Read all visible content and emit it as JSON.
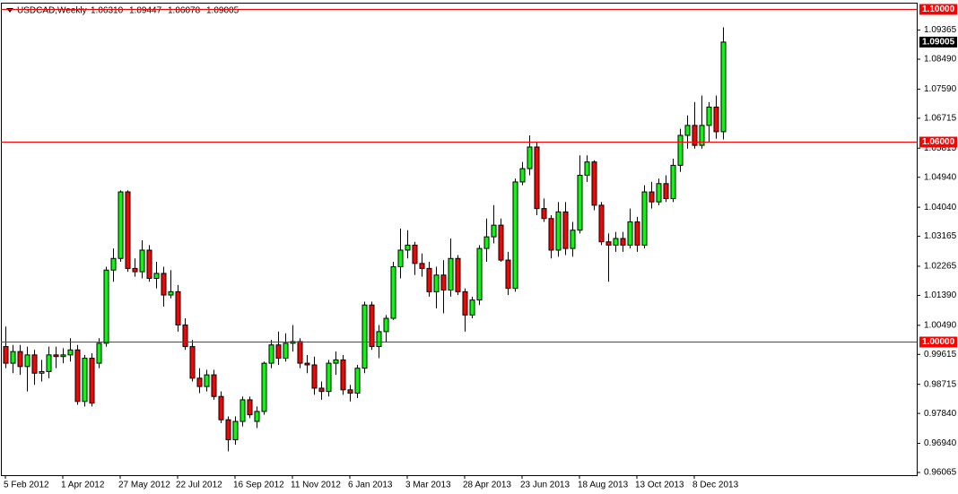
{
  "chart_data": {
    "type": "candlestick",
    "symbol": "USDCAD,Weekly",
    "ohlc_labels": [
      "1.06310",
      "1.09447",
      "1.06078",
      "1.09005"
    ],
    "up_color": "#00ff00",
    "down_color": "#ff0000",
    "ylim": [
      0.95984,
      1.10135
    ],
    "yticks": [
      1.09365,
      {
        "value": 1.0849,
        "label": "1.08490"
      },
      {
        "value": 1.0759,
        "label": "1.07590"
      },
      1.06715,
      1.05815,
      {
        "value": 1.0494,
        "label": "1.04940"
      },
      {
        "value": 1.0404,
        "label": "1.04040"
      },
      1.03165,
      1.02265,
      {
        "value": 1.0139,
        "label": "1.01390"
      },
      {
        "value": 1.0049,
        "label": "1.00490"
      },
      0.99615,
      0.98715,
      {
        "value": 0.9784,
        "label": "0.97840"
      },
      {
        "value": 0.9694,
        "label": "0.96940"
      },
      0.96065
    ],
    "levels": [
      {
        "value": 1.1,
        "label": "1.10000"
      },
      {
        "value": 1.06,
        "label": "1.06000"
      },
      {
        "value": 1.0,
        "label": "1.00000"
      }
    ],
    "level_color": "#ff0000",
    "current_price": {
      "value": 1.09005,
      "label": "1.09005"
    },
    "categories": [
      "5 Feb 2012",
      null,
      null,
      null,
      null,
      null,
      null,
      null,
      "1 Apr 2012",
      null,
      null,
      null,
      null,
      null,
      null,
      null,
      "27 May 2012",
      null,
      null,
      null,
      null,
      null,
      null,
      null,
      "22 Jul 2012",
      null,
      null,
      null,
      null,
      null,
      null,
      null,
      "16 Sep 2012",
      null,
      null,
      null,
      null,
      null,
      null,
      null,
      "11 Nov 2012",
      null,
      null,
      null,
      null,
      null,
      null,
      null,
      "6 Jan 2013",
      null,
      null,
      null,
      null,
      null,
      null,
      null,
      "3 Mar 2013",
      null,
      null,
      null,
      null,
      null,
      null,
      null,
      "28 Apr 2013",
      null,
      null,
      null,
      null,
      null,
      null,
      null,
      "23 Jun 2013",
      null,
      null,
      null,
      null,
      null,
      null,
      null,
      "18 Aug 2013",
      null,
      null,
      null,
      null,
      null,
      null,
      null,
      "13 Oct 2013",
      null,
      null,
      null,
      null,
      null,
      null,
      null,
      "8 Dec 2013",
      null,
      null,
      null,
      null
    ],
    "open": [
      0.9985,
      0.9935,
      0.997,
      0.9925,
      0.996,
      0.9905,
      0.991,
      0.996,
      0.9955,
      0.996,
      0.9975,
      0.982,
      0.995,
      0.9935,
      0.9995,
      1.0215,
      1.025,
      1.045,
      1.022,
      1.021,
      1.0275,
      1.019,
      1.0205,
      1.014,
      1.015,
      1.005,
      0.9985,
      0.989,
      0.9865,
      0.99,
      0.9835,
      0.9765,
      0.9705,
      0.976,
      0.9825,
      0.976,
      0.979,
      0.9935,
      0.999,
      0.995,
      0.9995,
      1.0,
      0.9935,
      0.993,
      0.986,
      0.985,
      0.9935,
      0.9945,
      0.9855,
      0.9845,
      0.992,
      1.011,
      0.9985,
      1.003,
      1.007,
      1.0225,
      1.0275,
      1.029,
      1.0235,
      1.022,
      1.015,
      1.02,
      1.0155,
      1.025,
      1.015,
      1.008,
      1.0125,
      1.028,
      1.0315,
      1.035,
      1.0245,
      1.016,
      1.048,
      1.052,
      1.0585,
      1.04,
      1.037,
      1.0275,
      1.039,
      1.028,
      1.0335,
      1.05,
      1.054,
      1.041,
      1.03,
      1.029,
      1.031,
      1.029,
      1.036,
      1.029,
      1.045,
      1.042,
      1.0475,
      1.043,
      1.053,
      1.062,
      1.065,
      1.059,
      1.065,
      1.0705,
      1.0631
    ],
    "high": [
      1.0045,
      0.999,
      0.999,
      0.9985,
      0.9975,
      0.9945,
      0.9985,
      0.9985,
      0.998,
      1.001,
      0.999,
      0.996,
      0.9965,
      1.001,
      1.0225,
      1.028,
      1.0455,
      1.0455,
      1.025,
      1.0305,
      1.029,
      1.024,
      1.0225,
      1.0215,
      1.017,
      1.007,
      1.0005,
      0.992,
      0.9915,
      0.9915,
      0.985,
      0.9775,
      0.9775,
      0.9835,
      0.9835,
      0.9805,
      0.994,
      1.0005,
      1.003,
      1.0025,
      1.005,
      1.001,
      0.996,
      0.9955,
      0.988,
      0.9945,
      0.997,
      0.996,
      0.987,
      0.993,
      1.012,
      1.012,
      1.005,
      1.008,
      1.024,
      1.034,
      1.0335,
      1.03,
      1.0265,
      1.024,
      1.0225,
      1.0245,
      1.031,
      1.026,
      1.016,
      1.0135,
      1.029,
      1.037,
      1.041,
      1.037,
      1.027,
      1.049,
      1.054,
      1.062,
      1.06,
      1.043,
      1.038,
      1.042,
      1.042,
      1.036,
      1.056,
      1.056,
      1.0545,
      1.042,
      1.0325,
      1.033,
      1.033,
      1.04,
      1.0375,
      1.047,
      1.048,
      1.049,
      1.05,
      1.055,
      1.064,
      1.068,
      1.072,
      1.074,
      1.072,
      1.074,
      1.09447
    ],
    "low": [
      0.992,
      0.9905,
      0.99,
      0.985,
      0.987,
      0.988,
      0.989,
      0.992,
      0.9935,
      0.994,
      0.981,
      0.9805,
      0.9805,
      0.992,
      0.9985,
      1.018,
      1.024,
      1.021,
      1.0195,
      1.019,
      1.018,
      1.016,
      1.0105,
      1.013,
      1.003,
      0.9975,
      0.988,
      0.9845,
      0.985,
      0.9825,
      0.9755,
      0.967,
      0.969,
      0.9745,
      0.977,
      0.974,
      0.978,
      0.992,
      0.993,
      0.994,
      0.997,
      0.992,
      0.9905,
      0.984,
      0.9825,
      0.9835,
      0.99,
      0.984,
      0.982,
      0.983,
      0.9905,
      0.9975,
      0.995,
      1.0,
      1.0065,
      1.019,
      1.025,
      1.02,
      1.0195,
      1.0135,
      1.01,
      1.0085,
      1.0135,
      1.014,
      1.003,
      1.007,
      1.011,
      1.024,
      1.0295,
      1.024,
      1.014,
      1.015,
      1.047,
      1.05,
      1.038,
      1.036,
      1.025,
      1.0255,
      1.026,
      1.0255,
      1.0325,
      1.048,
      1.0395,
      1.029,
      1.018,
      1.027,
      1.027,
      1.028,
      1.027,
      1.028,
      1.04,
      1.041,
      1.042,
      1.042,
      1.051,
      1.058,
      1.058,
      1.058,
      1.06,
      1.061,
      1.06078
    ],
    "close": [
      0.9935,
      0.997,
      0.9925,
      0.996,
      0.9905,
      0.991,
      0.996,
      0.9955,
      0.996,
      0.9975,
      0.982,
      0.995,
      0.9815,
      0.9995,
      1.0215,
      1.025,
      1.045,
      1.022,
      1.021,
      1.0275,
      1.019,
      1.0205,
      1.014,
      1.015,
      1.005,
      0.9985,
      0.989,
      0.9865,
      0.99,
      0.9835,
      0.9765,
      0.9705,
      0.976,
      0.9825,
      0.978,
      0.979,
      0.9935,
      0.999,
      0.995,
      0.9995,
      1.0,
      0.9935,
      0.993,
      0.986,
      0.985,
      0.9935,
      0.9945,
      0.9855,
      0.9845,
      0.992,
      1.011,
      0.9985,
      1.003,
      1.007,
      1.0225,
      1.0275,
      1.029,
      1.0235,
      1.022,
      1.015,
      1.02,
      1.0155,
      1.025,
      1.015,
      1.008,
      1.0125,
      1.028,
      1.0315,
      1.035,
      1.0245,
      1.016,
      1.048,
      1.052,
      1.0585,
      1.04,
      1.037,
      1.0275,
      1.039,
      1.028,
      1.0335,
      1.05,
      1.054,
      1.041,
      1.03,
      1.029,
      1.031,
      1.029,
      1.036,
      1.029,
      1.045,
      1.042,
      1.0475,
      1.043,
      1.053,
      1.062,
      1.065,
      1.059,
      1.065,
      1.0705,
      1.0631,
      1.09005
    ]
  }
}
